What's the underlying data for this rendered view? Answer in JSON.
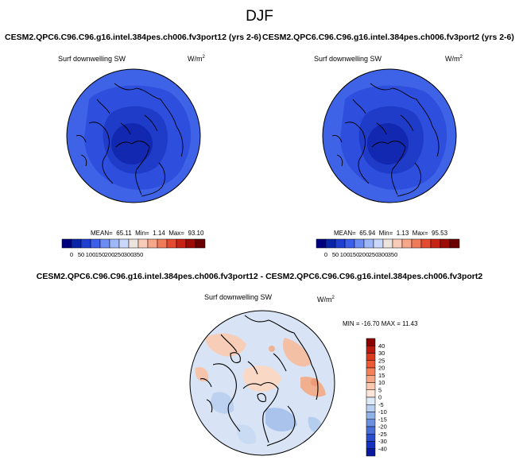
{
  "title": "DJF",
  "panels": [
    {
      "case_title": "CESM2.QPC6.C96.C96.g16.intel.384pes.ch006.fv3port12 (yrs 2-6)",
      "variable": "Surf downwelling SW",
      "units_base": "W/m",
      "units_exp": "2",
      "stats": {
        "mean_label": "MEAN=",
        "mean": "65.11",
        "min_label": "Min=",
        "min": "1.14",
        "max_label": "Max=",
        "max": "93.10"
      }
    },
    {
      "case_title": "CESM2.QPC6.C96.C96.g16.intel.384pes.ch006.fv3port2 (yrs 2-6)",
      "variable": "Surf downwelling SW",
      "units_base": "W/m",
      "units_exp": "2",
      "stats": {
        "mean_label": "MEAN=",
        "mean": "65.94",
        "min_label": "Min=",
        "min": "1.13",
        "max_label": "Max=",
        "max": "95.53"
      }
    }
  ],
  "colorbar_top": {
    "labels": [
      "0",
      "50",
      "100",
      "150",
      "200",
      "250",
      "300",
      "350"
    ],
    "colors": [
      "#00007f",
      "#0a25a8",
      "#1f3fd1",
      "#3c5ee8",
      "#6b8cf2",
      "#9db7f7",
      "#cad8fb",
      "#ece3de",
      "#f8cbb8",
      "#f6a689",
      "#f07b5b",
      "#e34a31",
      "#c62314",
      "#9c0c06",
      "#6b0000"
    ]
  },
  "difference": {
    "title": "CESM2.QPC6.C96.C96.g16.intel.384pes.ch006.fv3port12 - CESM2.QPC6.C96.C96.g16.intel.384pes.ch006.fv3port2",
    "variable": "Surf downwelling SW",
    "units_base": "W/m",
    "units_exp": "2",
    "minmax": "MIN = -16.70 MAX =  11.43"
  },
  "colorbar_diff": {
    "labels": [
      "40",
      "30",
      "25",
      "20",
      "15",
      "10",
      "5",
      "0",
      "-5",
      "-10",
      "-15",
      "-20",
      "-25",
      "-30",
      "-40"
    ],
    "colors": [
      "#8b0000",
      "#b81a0d",
      "#d83a1c",
      "#ec5a34",
      "#f4805a",
      "#f7a684",
      "#fac7af",
      "#fde6d9",
      "#dde9f7",
      "#b9d0f0",
      "#8fb2e8",
      "#6b90e0",
      "#4a6ed8",
      "#2a4ccf",
      "#1431c0",
      "#0a1a9e"
    ]
  },
  "colors": {
    "map_a_outer": "#3f63e6",
    "map_a_mid": "#2e4fde",
    "map_a_inner": "#1f3cc9",
    "map_a_core": "#1228b0",
    "diff_bg": "#d8e4f5",
    "coast": "#000000"
  }
}
